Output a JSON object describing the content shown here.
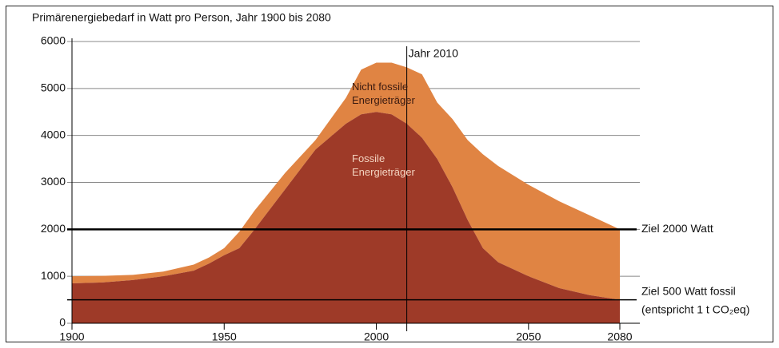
{
  "chart_data": {
    "type": "stacked_area",
    "title": "Primärenergiebedarf in Watt pro Person, Jahr 1900 bis 2080",
    "x": [
      1900,
      1910,
      1920,
      1930,
      1940,
      1945,
      1950,
      1955,
      1960,
      1970,
      1980,
      1990,
      1995,
      2000,
      2005,
      2010,
      2015,
      2020,
      2025,
      2030,
      2035,
      2040,
      2050,
      2060,
      2070,
      2080
    ],
    "series": [
      {
        "name": "Fossile Energieträger",
        "color": "#9e3a28",
        "values": [
          850,
          870,
          920,
          1000,
          1120,
          1270,
          1450,
          1600,
          2000,
          2850,
          3700,
          4250,
          4450,
          4500,
          4450,
          4250,
          3950,
          3500,
          2900,
          2200,
          1600,
          1300,
          1000,
          750,
          600,
          500
        ]
      },
      {
        "name": "Nicht fossile Energieträger",
        "color": "#e08443",
        "values": [
          150,
          140,
          110,
          100,
          130,
          130,
          150,
          350,
          400,
          350,
          200,
          550,
          950,
          1050,
          1100,
          1200,
          1350,
          1200,
          1450,
          1700,
          2000,
          2050,
          1950,
          1850,
          1700,
          1500
        ]
      }
    ],
    "xlim": [
      1900,
      2080
    ],
    "xticks": [
      1900,
      1950,
      2000,
      2050,
      2080
    ],
    "ylim": [
      0,
      6000
    ],
    "yticks": [
      0,
      1000,
      2000,
      3000,
      4000,
      5000,
      6000
    ],
    "grid": true,
    "reference_lines": [
      {
        "axis": "y",
        "value": 2000,
        "label": [
          "Ziel 2000 Watt"
        ]
      },
      {
        "axis": "y",
        "value": 500,
        "label": [
          "Ziel 500 Watt fossil",
          "(entspricht 1 t CO₂eq)"
        ]
      },
      {
        "axis": "x",
        "value": 2010,
        "label": [
          "Jahr 2010"
        ]
      }
    ]
  }
}
